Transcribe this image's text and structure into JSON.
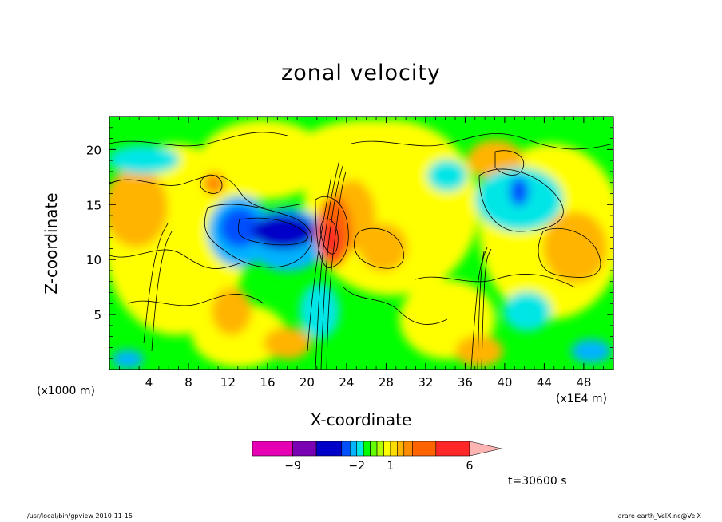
{
  "footer": {
    "program": "/usr/local/bin/gpview   2010-11-15",
    "source": "arare-earth_VelX.nc@VelX"
  },
  "chart_data": {
    "type": "heatmap",
    "title": "zonal velocity",
    "xlabel": "X-coordinate",
    "ylabel": "Z-coordinate",
    "x_unit_label": "(x1000 m)",
    "x_scale_label": "(x1E4 m)",
    "xlim": [
      0,
      51
    ],
    "ylim": [
      0,
      23
    ],
    "x_ticks": [
      4,
      8,
      12,
      16,
      20,
      24,
      28,
      32,
      36,
      40,
      44,
      48
    ],
    "y_ticks": [
      5,
      10,
      15,
      20
    ],
    "time_label": "t=30600 s",
    "colorbar": {
      "levels": [
        -12,
        -9,
        -6,
        -4,
        -3,
        -2,
        -1,
        -0.5,
        0,
        0.5,
        1,
        1.5,
        2,
        3,
        4,
        6,
        9,
        12
      ],
      "colors": [
        "#e600b4",
        "#7a00b4",
        "#0000c8",
        "#0050ff",
        "#00b4ff",
        "#00e6e6",
        "#00ff00",
        "#64ff00",
        "#b4ff00",
        "#ffff00",
        "#ffdc00",
        "#ffb400",
        "#ff8c00",
        "#ff6400",
        "#ff2828",
        "#ff7a7a",
        "#ffb4b4"
      ],
      "tick_labels": [
        {
          "value": -9,
          "label": "−9"
        },
        {
          "value": -2,
          "label": "−2"
        },
        {
          "value": 1,
          "label": "1"
        },
        {
          "value": 6,
          "label": "6"
        }
      ]
    },
    "field_features": [
      {
        "x": 21,
        "z": 12,
        "u": 6
      },
      {
        "x": 24,
        "z": 14,
        "u": 3
      },
      {
        "x": 17,
        "z": 13,
        "u": -4
      },
      {
        "x": 12,
        "z": 12,
        "u": -3
      },
      {
        "x": 37,
        "z": 10,
        "u": 3
      },
      {
        "x": 41,
        "z": 15,
        "u": -2
      },
      {
        "x": 28,
        "z": 10,
        "u": 2
      },
      {
        "x": 3,
        "z": 14,
        "u": 1.5
      },
      {
        "x": 46,
        "z": 11,
        "u": 1.5
      }
    ]
  }
}
